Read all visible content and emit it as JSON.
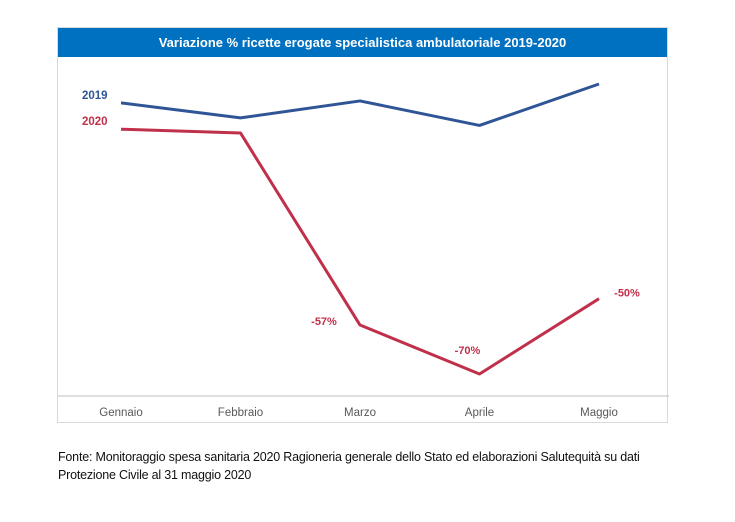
{
  "chart_data": {
    "type": "line",
    "title": "Variazione % ricette erogate specialistica ambulatoriale 2019-2020",
    "categories": [
      "Gennaio",
      "Febbraio",
      "Marzo",
      "Aprile",
      "Maggio"
    ],
    "series": [
      {
        "name": "2019",
        "color": "#2f5597",
        "values": [
          2,
          -2,
          2.5,
          -4,
          7
        ],
        "data_labels": [
          "",
          "",
          "",
          "",
          ""
        ]
      },
      {
        "name": "2020",
        "color": "#c0304a",
        "values": [
          -5,
          -6,
          -57,
          -70,
          -50
        ],
        "data_labels": [
          "",
          "",
          "-57%",
          "-70%",
          "-50%"
        ]
      }
    ],
    "grid": false,
    "legend": "left, inline labels"
  },
  "source": "Fonte: Monitoraggio spesa sanitaria 2020 Ragioneria generale dello Stato ed elaborazioni Salutequità su dati Protezione Civile al 31 maggio 2020"
}
